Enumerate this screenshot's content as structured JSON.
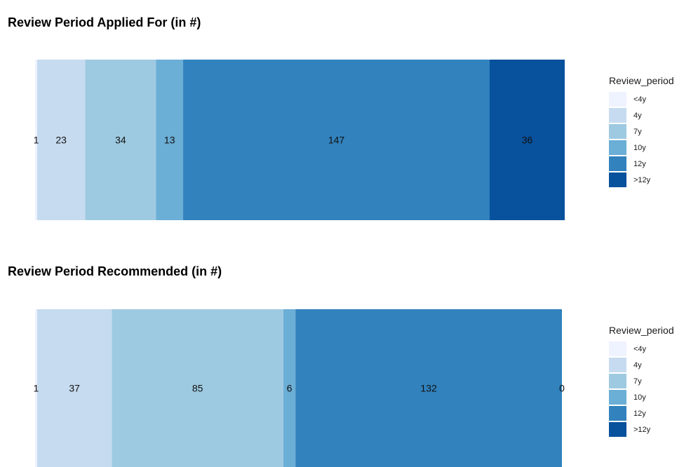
{
  "chart_data": [
    {
      "type": "bar",
      "orientation": "horizontal-stacked",
      "title": "Review Period Applied For (in #)",
      "categories": [
        "<4y",
        "4y",
        "7y",
        "10y",
        "12y",
        ">12y"
      ],
      "values": [
        1,
        23,
        34,
        13,
        147,
        36
      ],
      "data_labels": [
        "1",
        "23",
        "34",
        "13",
        "147",
        "36"
      ],
      "legend": {
        "title": "Review_period",
        "position": "right"
      }
    },
    {
      "type": "bar",
      "orientation": "horizontal-stacked",
      "title": "Review Period Recommended (in #)",
      "categories": [
        "<4y",
        "4y",
        "7y",
        "10y",
        "12y",
        ">12y"
      ],
      "values": [
        1,
        37,
        85,
        6,
        132,
        0
      ],
      "data_labels": [
        "1",
        "37",
        "85",
        "6",
        "132",
        "0"
      ],
      "legend": {
        "title": "Review_period",
        "position": "right"
      }
    }
  ],
  "colors": {
    "<4y": "#EFF3FF",
    "4y": "#C6DBEF",
    "7y": "#9ECAE1",
    "10y": "#6BAED6",
    "12y": "#3182BD",
    ">12y": "#08519C"
  }
}
